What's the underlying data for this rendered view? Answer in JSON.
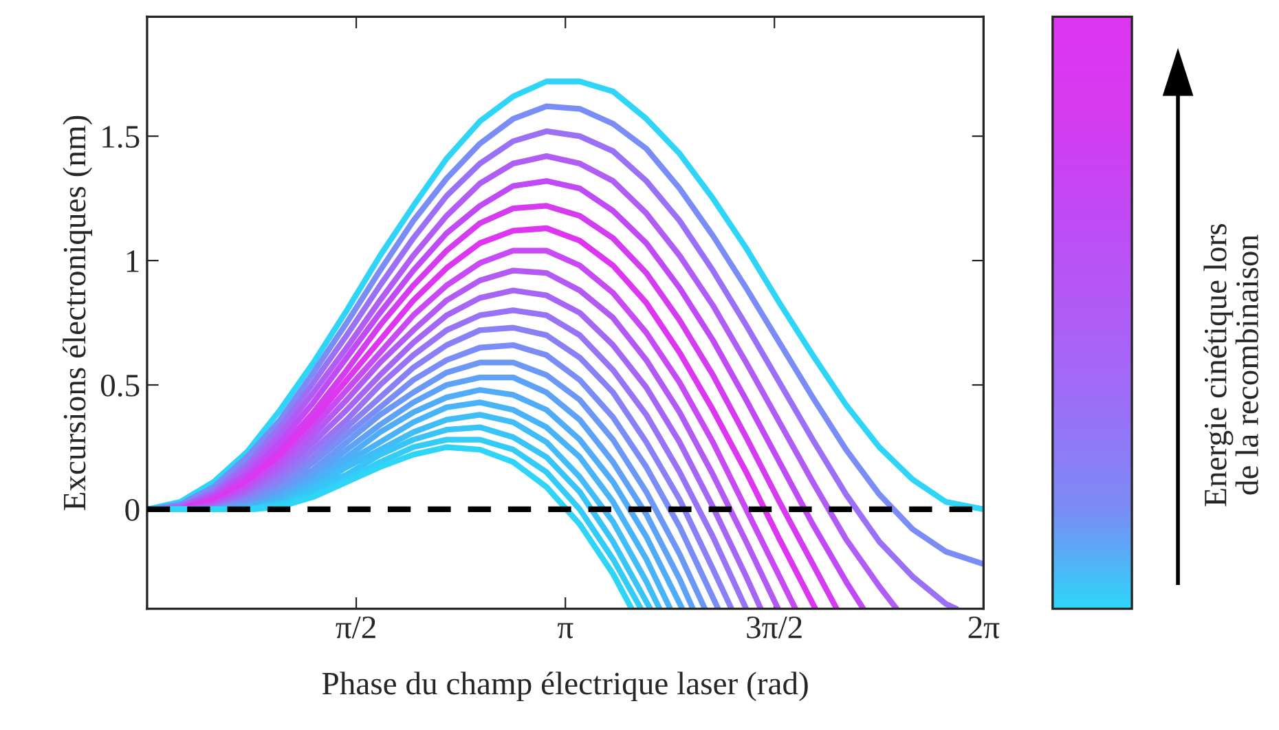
{
  "chart_data": {
    "type": "line",
    "xlabel": "Phase du champ électrique laser (rad)",
    "ylabel": "Excursions électroniques (nm)",
    "clabel": "Energie cinétique lors\nde la recombinaison",
    "xlim": [
      0,
      6.283
    ],
    "ylim": [
      -0.4,
      1.98
    ],
    "xticks": [
      {
        "value": 1.571,
        "label": "π/2"
      },
      {
        "value": 3.142,
        "label": "π"
      },
      {
        "value": 4.712,
        "label": "3π/2"
      },
      {
        "value": 6.283,
        "label": "2π"
      }
    ],
    "yticks": [
      0,
      0.5,
      1,
      1.5
    ],
    "grid": false,
    "legend": false,
    "marker": "none",
    "line_style": "solid",
    "ref_lines": [
      {
        "axis": "y",
        "value": 0,
        "color": "#000000",
        "line_style": "dashed"
      }
    ],
    "series": [
      {
        "color": "#2fd5f7",
        "x": [
          0,
          0.25,
          0.5,
          0.75,
          1,
          1.25,
          1.5,
          1.75,
          2,
          2.25,
          2.5,
          2.75,
          3,
          3.25,
          3.5,
          3.75,
          4,
          4.25,
          4.5,
          4.75,
          5,
          5.25,
          5.5,
          5.75,
          6,
          6.283
        ],
        "values": [
          0.0,
          0.03,
          0.11,
          0.23,
          0.4,
          0.59,
          0.8,
          1.02,
          1.22,
          1.41,
          1.56,
          1.66,
          1.72,
          1.72,
          1.68,
          1.57,
          1.43,
          1.25,
          1.05,
          0.83,
          0.62,
          0.42,
          0.25,
          0.12,
          0.03,
          0.0
        ]
      },
      {
        "color": "#7a8cf5",
        "x": [
          0,
          0.04,
          0.25,
          0.5,
          0.75,
          1,
          1.25,
          1.5,
          1.75,
          2,
          2.25,
          2.5,
          2.75,
          3,
          3.25,
          3.5,
          3.75,
          4,
          4.25,
          4.5,
          4.75,
          5,
          5.25,
          5.5,
          5.75,
          6,
          6.283
        ],
        "values": [
          0.0,
          0.0,
          0.02,
          0.09,
          0.21,
          0.36,
          0.55,
          0.75,
          0.96,
          1.16,
          1.33,
          1.47,
          1.57,
          1.62,
          1.61,
          1.55,
          1.45,
          1.29,
          1.1,
          0.89,
          0.67,
          0.45,
          0.24,
          0.06,
          -0.08,
          -0.17,
          -0.22
        ]
      },
      {
        "color": "#9a70f7",
        "x": [
          0,
          0.08,
          0.25,
          0.5,
          0.75,
          1,
          1.25,
          1.5,
          1.75,
          2,
          2.25,
          2.5,
          2.75,
          3,
          3.25,
          3.5,
          3.75,
          4,
          4.25,
          4.5,
          4.75,
          5,
          5.25,
          5.5,
          5.75,
          6,
          6.08
        ],
        "values": [
          0.0,
          0.0,
          0.01,
          0.07,
          0.18,
          0.33,
          0.51,
          0.7,
          0.9,
          1.09,
          1.26,
          1.39,
          1.48,
          1.52,
          1.5,
          1.44,
          1.32,
          1.16,
          0.96,
          0.74,
          0.51,
          0.28,
          0.06,
          -0.13,
          -0.27,
          -0.38,
          -0.4
        ]
      },
      {
        "color": "#b05cf5",
        "x": [
          0,
          0.12,
          0.25,
          0.5,
          0.75,
          1,
          1.25,
          1.5,
          1.75,
          2,
          2.25,
          2.5,
          2.75,
          3,
          3.25,
          3.5,
          3.75,
          4,
          4.25,
          4.5,
          4.75,
          5,
          5.25,
          5.5,
          5.63
        ],
        "values": [
          0.0,
          0.0,
          0.01,
          0.06,
          0.16,
          0.3,
          0.47,
          0.65,
          0.84,
          1.02,
          1.18,
          1.31,
          1.39,
          1.42,
          1.39,
          1.32,
          1.19,
          1.02,
          0.82,
          0.59,
          0.35,
          0.11,
          -0.12,
          -0.31,
          -0.4
        ]
      },
      {
        "color": "#c04af5",
        "x": [
          0,
          0.16,
          0.25,
          0.5,
          0.75,
          1,
          1.25,
          1.5,
          1.75,
          2,
          2.25,
          2.5,
          2.75,
          3,
          3.25,
          3.5,
          3.75,
          4,
          4.25,
          4.5,
          4.75,
          5,
          5.25,
          5.38
        ],
        "values": [
          0.0,
          0.0,
          0.0,
          0.05,
          0.14,
          0.27,
          0.43,
          0.61,
          0.79,
          0.96,
          1.11,
          1.22,
          1.3,
          1.32,
          1.29,
          1.2,
          1.07,
          0.89,
          0.68,
          0.44,
          0.19,
          -0.06,
          -0.29,
          -0.4
        ]
      },
      {
        "color": "#d53cf0",
        "x": [
          0,
          0.2,
          0.25,
          0.5,
          0.75,
          1,
          1.25,
          1.5,
          1.75,
          2,
          2.25,
          2.5,
          2.75,
          3,
          3.25,
          3.5,
          3.75,
          4,
          4.25,
          4.5,
          4.75,
          5,
          5.18
        ],
        "values": [
          0.0,
          0.0,
          0.0,
          0.04,
          0.12,
          0.24,
          0.39,
          0.56,
          0.74,
          0.9,
          1.04,
          1.15,
          1.21,
          1.22,
          1.18,
          1.09,
          0.95,
          0.76,
          0.54,
          0.29,
          0.03,
          -0.22,
          -0.4
        ]
      },
      {
        "color": "#dd35f0",
        "x": [
          0,
          0.24,
          0.25,
          0.5,
          0.75,
          1,
          1.25,
          1.5,
          1.75,
          2,
          2.25,
          2.5,
          2.75,
          3,
          3.25,
          3.5,
          3.75,
          4,
          4.25,
          4.5,
          4.75,
          5.02
        ],
        "values": [
          0.0,
          0.0,
          0.0,
          0.03,
          0.1,
          0.22,
          0.36,
          0.52,
          0.68,
          0.84,
          0.97,
          1.07,
          1.12,
          1.13,
          1.08,
          0.98,
          0.83,
          0.63,
          0.4,
          0.15,
          -0.12,
          -0.4
        ]
      },
      {
        "color": "#c74af5",
        "x": [
          0,
          0.28,
          0.5,
          0.75,
          1,
          1.25,
          1.5,
          1.75,
          2,
          2.25,
          2.5,
          2.75,
          3,
          3.25,
          3.5,
          3.75,
          4,
          4.25,
          4.5,
          4.75,
          4.87
        ],
        "values": [
          0.0,
          0.0,
          0.02,
          0.09,
          0.19,
          0.33,
          0.48,
          0.63,
          0.78,
          0.9,
          0.99,
          1.04,
          1.04,
          0.98,
          0.87,
          0.71,
          0.51,
          0.27,
          0.0,
          -0.27,
          -0.4
        ]
      },
      {
        "color": "#b35af5",
        "x": [
          0,
          0.32,
          0.5,
          0.75,
          1,
          1.25,
          1.5,
          1.75,
          2,
          2.25,
          2.5,
          2.75,
          3,
          3.25,
          3.5,
          3.75,
          4,
          4.25,
          4.5,
          4.74
        ],
        "values": [
          0.0,
          0.0,
          0.01,
          0.07,
          0.17,
          0.3,
          0.44,
          0.59,
          0.72,
          0.84,
          0.92,
          0.96,
          0.95,
          0.88,
          0.77,
          0.6,
          0.39,
          0.14,
          -0.13,
          -0.4
        ]
      },
      {
        "color": "#a566f5",
        "x": [
          0,
          0.36,
          0.5,
          0.75,
          1,
          1.25,
          1.5,
          1.75,
          2,
          2.25,
          2.5,
          2.75,
          3,
          3.25,
          3.5,
          3.75,
          4,
          4.25,
          4.5,
          4.61
        ],
        "values": [
          0.0,
          0.0,
          0.01,
          0.06,
          0.15,
          0.27,
          0.4,
          0.54,
          0.67,
          0.78,
          0.85,
          0.88,
          0.86,
          0.79,
          0.66,
          0.49,
          0.27,
          0.01,
          -0.27,
          -0.4
        ]
      },
      {
        "color": "#9873f5",
        "x": [
          0,
          0.4,
          0.5,
          0.75,
          1,
          1.25,
          1.5,
          1.75,
          2,
          2.25,
          2.5,
          2.75,
          3,
          3.25,
          3.5,
          3.75,
          4,
          4.25,
          4.5
        ],
        "values": [
          0.0,
          0.0,
          0.0,
          0.05,
          0.13,
          0.24,
          0.36,
          0.5,
          0.62,
          0.72,
          0.78,
          0.8,
          0.78,
          0.7,
          0.56,
          0.38,
          0.15,
          -0.11,
          -0.4
        ]
      },
      {
        "color": "#8a80f5",
        "x": [
          0,
          0.44,
          0.5,
          0.75,
          1,
          1.25,
          1.5,
          1.75,
          2,
          2.25,
          2.5,
          2.75,
          3,
          3.25,
          3.5,
          3.75,
          4,
          4.25,
          4.39
        ],
        "values": [
          0.0,
          0.0,
          0.0,
          0.04,
          0.11,
          0.21,
          0.33,
          0.45,
          0.57,
          0.66,
          0.72,
          0.73,
          0.7,
          0.61,
          0.47,
          0.27,
          0.04,
          -0.24,
          -0.4
        ]
      },
      {
        "color": "#7a8cf5",
        "x": [
          0,
          0.48,
          0.5,
          0.75,
          1,
          1.25,
          1.5,
          1.75,
          2,
          2.25,
          2.5,
          2.75,
          3,
          3.25,
          3.5,
          3.75,
          4,
          4.29
        ],
        "values": [
          0.0,
          0.0,
          0.0,
          0.03,
          0.09,
          0.19,
          0.3,
          0.41,
          0.52,
          0.6,
          0.65,
          0.66,
          0.62,
          0.52,
          0.37,
          0.17,
          -0.07,
          -0.4
        ]
      },
      {
        "color": "#6b98f5",
        "x": [
          0,
          0.52,
          0.75,
          1,
          1.25,
          1.5,
          1.75,
          2,
          2.25,
          2.5,
          2.75,
          3,
          3.25,
          3.5,
          3.75,
          4,
          4.19
        ],
        "values": [
          0.0,
          0.0,
          0.02,
          0.08,
          0.16,
          0.27,
          0.38,
          0.47,
          0.55,
          0.59,
          0.59,
          0.54,
          0.44,
          0.28,
          0.07,
          -0.18,
          -0.4
        ]
      },
      {
        "color": "#5da2f7",
        "x": [
          0,
          0.56,
          0.75,
          1,
          1.25,
          1.5,
          1.75,
          2,
          2.25,
          2.5,
          2.75,
          3,
          3.25,
          3.5,
          3.75,
          4,
          4.1
        ],
        "values": [
          0.0,
          0.0,
          0.01,
          0.06,
          0.14,
          0.24,
          0.34,
          0.43,
          0.5,
          0.53,
          0.53,
          0.47,
          0.36,
          0.19,
          -0.02,
          -0.28,
          -0.4
        ]
      },
      {
        "color": "#50acf7",
        "x": [
          0,
          0.6,
          0.75,
          1,
          1.25,
          1.5,
          1.75,
          2,
          2.25,
          2.5,
          2.75,
          3,
          3.25,
          3.5,
          3.75,
          4.02
        ],
        "values": [
          0.0,
          0.0,
          0.01,
          0.05,
          0.12,
          0.21,
          0.31,
          0.39,
          0.45,
          0.48,
          0.46,
          0.4,
          0.28,
          0.11,
          -0.11,
          -0.4
        ]
      },
      {
        "color": "#48b4f7",
        "x": [
          0,
          0.64,
          0.75,
          1,
          1.25,
          1.5,
          1.75,
          2,
          2.25,
          2.5,
          2.75,
          3,
          3.25,
          3.5,
          3.75,
          3.93
        ],
        "values": [
          0.0,
          0.0,
          0.0,
          0.04,
          0.11,
          0.19,
          0.27,
          0.35,
          0.41,
          0.43,
          0.4,
          0.33,
          0.21,
          0.03,
          -0.2,
          -0.4
        ]
      },
      {
        "color": "#40bcf7",
        "x": [
          0,
          0.68,
          0.75,
          1,
          1.25,
          1.5,
          1.75,
          2,
          2.25,
          2.5,
          2.75,
          3,
          3.25,
          3.5,
          3.75,
          3.85
        ],
        "values": [
          0.0,
          0.0,
          0.0,
          0.03,
          0.09,
          0.17,
          0.24,
          0.31,
          0.36,
          0.38,
          0.35,
          0.27,
          0.13,
          -0.05,
          -0.29,
          -0.4
        ]
      },
      {
        "color": "#38c4f7",
        "x": [
          0,
          0.72,
          0.75,
          1,
          1.25,
          1.5,
          1.75,
          2,
          2.25,
          2.5,
          2.75,
          3,
          3.25,
          3.5,
          3.78
        ],
        "values": [
          0.0,
          0.0,
          0.0,
          0.02,
          0.08,
          0.14,
          0.22,
          0.28,
          0.32,
          0.33,
          0.29,
          0.21,
          0.07,
          -0.13,
          -0.4
        ]
      },
      {
        "color": "#33ccf7",
        "x": [
          0,
          0.76,
          1,
          1.25,
          1.5,
          1.75,
          2,
          2.25,
          2.5,
          2.75,
          3,
          3.25,
          3.5,
          3.71
        ],
        "values": [
          0.0,
          0.0,
          0.02,
          0.06,
          0.12,
          0.19,
          0.25,
          0.28,
          0.28,
          0.24,
          0.15,
          0.0,
          -0.2,
          -0.4
        ]
      },
      {
        "color": "#2fd5f7",
        "x": [
          0,
          0.8,
          1,
          1.25,
          1.5,
          1.75,
          2,
          2.25,
          2.5,
          2.75,
          3,
          3.25,
          3.5,
          3.64
        ],
        "values": [
          0.0,
          0.0,
          0.01,
          0.05,
          0.11,
          0.17,
          0.22,
          0.25,
          0.24,
          0.19,
          0.09,
          -0.06,
          -0.26,
          -0.4
        ]
      }
    ]
  }
}
